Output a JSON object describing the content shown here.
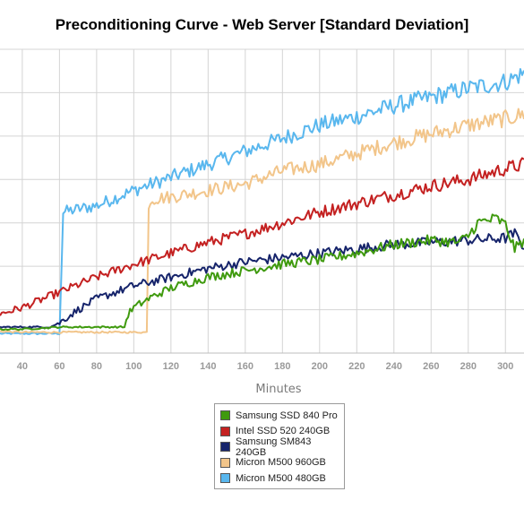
{
  "chart_data": {
    "type": "line",
    "title": "Preconditioning Curve - Web Server [Standard Deviation]",
    "xlabel": "Minutes",
    "ylabel": "",
    "x_ticks": [
      40,
      60,
      80,
      100,
      120,
      140,
      160,
      180,
      200,
      220,
      240,
      260,
      280,
      300
    ],
    "xlim": [
      28,
      310
    ],
    "ylim": [
      0,
      7
    ],
    "grid": true,
    "legend_position": "bottom-center",
    "series": [
      {
        "name": "Samsung SSD 840 Pro",
        "color": "#3f9a0e",
        "x": [
          28,
          40,
          60,
          80,
          95,
          97,
          100,
          110,
          120,
          140,
          160,
          180,
          200,
          220,
          240,
          260,
          275,
          280,
          285,
          290,
          295,
          300,
          305,
          310
        ],
        "y": [
          0.55,
          0.55,
          0.6,
          0.6,
          0.6,
          0.9,
          1.05,
          1.3,
          1.5,
          1.75,
          1.9,
          2.05,
          2.15,
          2.3,
          2.5,
          2.6,
          2.55,
          2.7,
          3.0,
          3.05,
          3.1,
          2.95,
          2.4,
          2.6
        ]
      },
      {
        "name": "Intel SSD 520 240GB",
        "color": "#c42121",
        "x": [
          28,
          40,
          60,
          80,
          100,
          120,
          140,
          160,
          180,
          200,
          220,
          240,
          260,
          280,
          300,
          310
        ],
        "y": [
          0.9,
          1.05,
          1.4,
          1.75,
          2.05,
          2.3,
          2.55,
          2.75,
          3.0,
          3.25,
          3.45,
          3.65,
          3.85,
          4.0,
          4.25,
          4.35
        ]
      },
      {
        "name": "Samsung SM843 240GB",
        "color": "#16246b",
        "x": [
          28,
          40,
          55,
          60,
          70,
          80,
          100,
          120,
          140,
          160,
          180,
          200,
          220,
          240,
          260,
          280,
          300,
          305,
          310
        ],
        "y": [
          0.6,
          0.6,
          0.6,
          0.7,
          1.0,
          1.25,
          1.55,
          1.75,
          1.95,
          2.1,
          2.2,
          2.3,
          2.4,
          2.5,
          2.55,
          2.6,
          2.65,
          2.75,
          2.45
        ]
      },
      {
        "name": "Micron M500 960GB",
        "color": "#f2c58a",
        "x": [
          28,
          40,
          60,
          80,
          100,
          107,
          108,
          110,
          120,
          140,
          160,
          180,
          200,
          220,
          240,
          260,
          280,
          300,
          310
        ],
        "y": [
          0.5,
          0.48,
          0.48,
          0.48,
          0.48,
          0.48,
          3.45,
          3.55,
          3.6,
          3.75,
          3.9,
          4.2,
          4.35,
          4.6,
          4.85,
          5.05,
          5.25,
          5.4,
          5.5
        ]
      },
      {
        "name": "Micron M500 480GB",
        "color": "#59b7ee",
        "x": [
          28,
          40,
          58,
          60,
          62,
          80,
          100,
          120,
          140,
          160,
          180,
          200,
          220,
          240,
          260,
          280,
          300,
          310
        ],
        "y": [
          0.45,
          0.45,
          0.45,
          0.45,
          3.25,
          3.4,
          3.75,
          4.05,
          4.35,
          4.65,
          4.95,
          5.25,
          5.45,
          5.7,
          5.9,
          6.1,
          6.25,
          6.45
        ]
      }
    ]
  }
}
